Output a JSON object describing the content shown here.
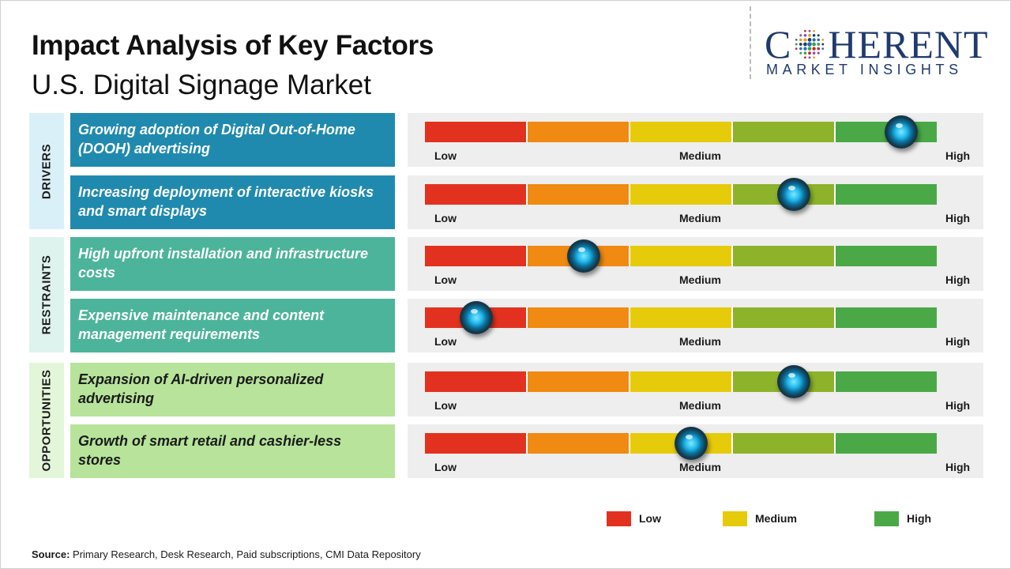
{
  "header": {
    "title": "Impact Analysis of Key Factors",
    "subtitle": "U.S. Digital Signage Market"
  },
  "logo": {
    "word_c": "C",
    "word_rest": "HERENT",
    "tagline": "MARKET INSIGHTS"
  },
  "colors": {
    "drivers_category_bg": "#daf0f8",
    "drivers_factor_bg": "#1f8aae",
    "restraints_category_bg": "#def3ee",
    "restraints_factor_bg": "#4cb49a",
    "opportunities_category_bg": "#e3f6da",
    "opportunities_factor_bg": "#b7e49a",
    "scale": [
      "#e2321f",
      "#f08a12",
      "#e6cb0a",
      "#8db32a",
      "#4aa946"
    ]
  },
  "chart_data": {
    "type": "table",
    "scale_labels": {
      "low": "Low",
      "medium": "Medium",
      "high": "High"
    },
    "categories": [
      {
        "name": "DRIVERS",
        "factors": [
          {
            "label": "Growing adoption of Digital Out-of-Home (DOOH) advertising",
            "impact": 0.93
          },
          {
            "label": "Increasing deployment of interactive kiosks and smart displays",
            "impact": 0.72
          }
        ]
      },
      {
        "name": "RESTRAINTS",
        "factors": [
          {
            "label": "High upfront installation and infrastructure costs",
            "impact": 0.31
          },
          {
            "label": "Expensive maintenance and content management requirements",
            "impact": 0.1
          }
        ]
      },
      {
        "name": "OPPORTUNITIES",
        "factors": [
          {
            "label": "Expansion of AI-driven personalized advertising",
            "impact": 0.72
          },
          {
            "label": "Growth of smart retail and cashier-less stores",
            "impact": 0.52
          }
        ]
      }
    ],
    "legend": [
      {
        "label": "Low",
        "color": "#e2321f"
      },
      {
        "label": "Medium",
        "color": "#e6cb0a"
      },
      {
        "label": "High",
        "color": "#4aa946"
      }
    ]
  },
  "footer": {
    "source_label": "Source:",
    "source_text": " Primary Research, Desk Research, Paid subscriptions, CMI Data Repository"
  }
}
